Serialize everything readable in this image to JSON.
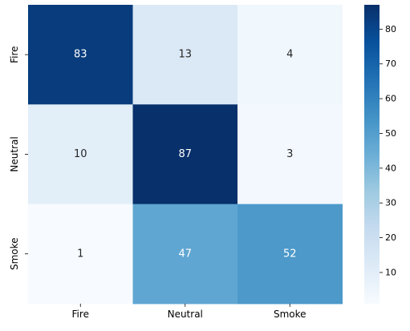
{
  "chart_data": {
    "type": "heatmap",
    "title": "",
    "xlabel": "",
    "ylabel": "",
    "x_categories": [
      "Fire",
      "Neutral",
      "Smoke"
    ],
    "y_categories": [
      "Fire",
      "Neutral",
      "Smoke"
    ],
    "values": [
      [
        83,
        13,
        4
      ],
      [
        10,
        87,
        3
      ],
      [
        1,
        47,
        52
      ]
    ],
    "colormap": "Blues",
    "color_range": [
      1,
      87
    ],
    "colorbar_ticks": [
      10,
      20,
      30,
      40,
      50,
      60,
      70,
      80
    ],
    "annotations": true,
    "grid": false
  }
}
